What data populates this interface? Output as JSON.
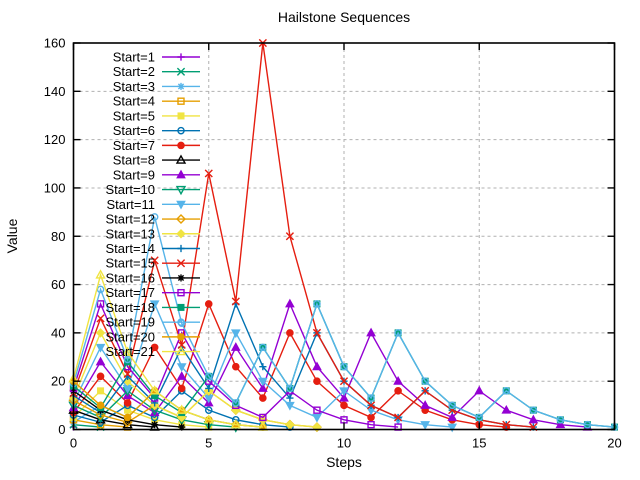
{
  "window": {
    "background": "#ffffff"
  },
  "chart_data": {
    "type": "line",
    "title": "Hailstone Sequences",
    "xlabel": "Steps",
    "ylabel": "Value",
    "xlim": [
      0,
      20
    ],
    "ylim": [
      0,
      160
    ],
    "xticks": [
      0,
      5,
      10,
      15,
      20
    ],
    "yticks": [
      0,
      20,
      40,
      60,
      80,
      100,
      120,
      140,
      160
    ],
    "grid": true,
    "grid_style": "dashed",
    "grid_color": "#b0b0b0",
    "border_color": "#000000",
    "legend_position": "top-left-inside",
    "palette": [
      "#9400d3",
      "#009e73",
      "#56b4e9",
      "#e69f00",
      "#f0e442",
      "#0072b2",
      "#e51e10",
      "#000000"
    ],
    "x_start": 0,
    "x_step": 1,
    "series": [
      {
        "name": "Start=1",
        "color": "#9400d3",
        "marker": "plus",
        "values": [
          1
        ]
      },
      {
        "name": "Start=2",
        "color": "#009e73",
        "marker": "cross",
        "values": [
          2,
          1
        ]
      },
      {
        "name": "Start=3",
        "color": "#56b4e9",
        "marker": "asterisk",
        "values": [
          3,
          10,
          5,
          16,
          8,
          4,
          2,
          1
        ]
      },
      {
        "name": "Start=4",
        "color": "#e69f00",
        "marker": "square-open",
        "values": [
          4,
          2,
          1
        ]
      },
      {
        "name": "Start=5",
        "color": "#f0e442",
        "marker": "square-filled",
        "values": [
          5,
          16,
          8,
          4,
          2,
          1
        ]
      },
      {
        "name": "Start=6",
        "color": "#0072b2",
        "marker": "circle-open",
        "values": [
          6,
          3,
          10,
          5,
          16,
          8,
          4,
          2,
          1
        ]
      },
      {
        "name": "Start=7",
        "color": "#e51e10",
        "marker": "circle-filled",
        "values": [
          7,
          22,
          11,
          34,
          17,
          52,
          26,
          13,
          40,
          20,
          10,
          5,
          16,
          8,
          4,
          2,
          1
        ]
      },
      {
        "name": "Start=8",
        "color": "#000000",
        "marker": "triangle-up-open",
        "values": [
          8,
          4,
          2,
          1
        ]
      },
      {
        "name": "Start=9",
        "color": "#9400d3",
        "marker": "triangle-up-filled",
        "values": [
          9,
          28,
          14,
          7,
          22,
          11,
          34,
          17,
          52,
          26,
          13,
          40,
          20,
          10,
          5,
          16,
          8,
          4,
          2,
          1
        ]
      },
      {
        "name": "Start=10",
        "color": "#009e73",
        "marker": "triangle-down-open",
        "values": [
          10,
          5,
          16,
          8,
          4,
          2,
          1
        ]
      },
      {
        "name": "Start=11",
        "color": "#56b4e9",
        "marker": "triangle-down-filled",
        "values": [
          11,
          34,
          17,
          52,
          26,
          13,
          40,
          20,
          10,
          5,
          16,
          8,
          4,
          2,
          1
        ]
      },
      {
        "name": "Start=12",
        "color": "#e69f00",
        "marker": "diamond-open",
        "values": [
          12,
          6,
          3,
          10,
          5,
          16,
          8,
          4,
          2,
          1
        ]
      },
      {
        "name": "Start=13",
        "color": "#f0e442",
        "marker": "diamond-filled",
        "values": [
          13,
          40,
          20,
          10,
          5,
          16,
          8,
          4,
          2,
          1
        ]
      },
      {
        "name": "Start=14",
        "color": "#0072b2",
        "marker": "plus",
        "values": [
          14,
          7,
          22,
          11,
          34,
          17,
          52,
          26,
          13,
          40,
          20,
          10,
          5,
          16,
          8,
          4,
          2,
          1
        ]
      },
      {
        "name": "Start=15",
        "color": "#e51e10",
        "marker": "cross",
        "values": [
          15,
          46,
          23,
          70,
          35,
          106,
          53,
          160,
          80,
          40,
          20,
          10,
          5,
          16,
          8,
          4,
          2,
          1
        ]
      },
      {
        "name": "Start=16",
        "color": "#000000",
        "marker": "asterisk",
        "values": [
          16,
          8,
          4,
          2,
          1
        ]
      },
      {
        "name": "Start=17",
        "color": "#9400d3",
        "marker": "square-open",
        "values": [
          17,
          52,
          26,
          13,
          40,
          20,
          10,
          5,
          16,
          8,
          4,
          2,
          1
        ]
      },
      {
        "name": "Start=18",
        "color": "#009e73",
        "marker": "square-filled",
        "values": [
          18,
          9,
          28,
          14,
          7,
          22,
          11,
          34,
          17,
          52,
          26,
          13,
          40,
          20,
          10,
          5,
          16,
          8,
          4,
          2,
          1
        ]
      },
      {
        "name": "Start=19",
        "color": "#56b4e9",
        "marker": "circle-open",
        "values": [
          19,
          58,
          29,
          88,
          44,
          22,
          11,
          34,
          17,
          52,
          26,
          13,
          40,
          20,
          10,
          5,
          16,
          8,
          4,
          2,
          1
        ]
      },
      {
        "name": "Start=20",
        "color": "#e69f00",
        "marker": "circle-filled",
        "values": [
          20,
          10,
          5,
          16,
          8,
          4,
          2,
          1
        ]
      },
      {
        "name": "Start=21",
        "color": "#f0e442",
        "marker": "triangle-up-open",
        "values": [
          21,
          64,
          32,
          16,
          8,
          4,
          2,
          1
        ]
      }
    ]
  }
}
